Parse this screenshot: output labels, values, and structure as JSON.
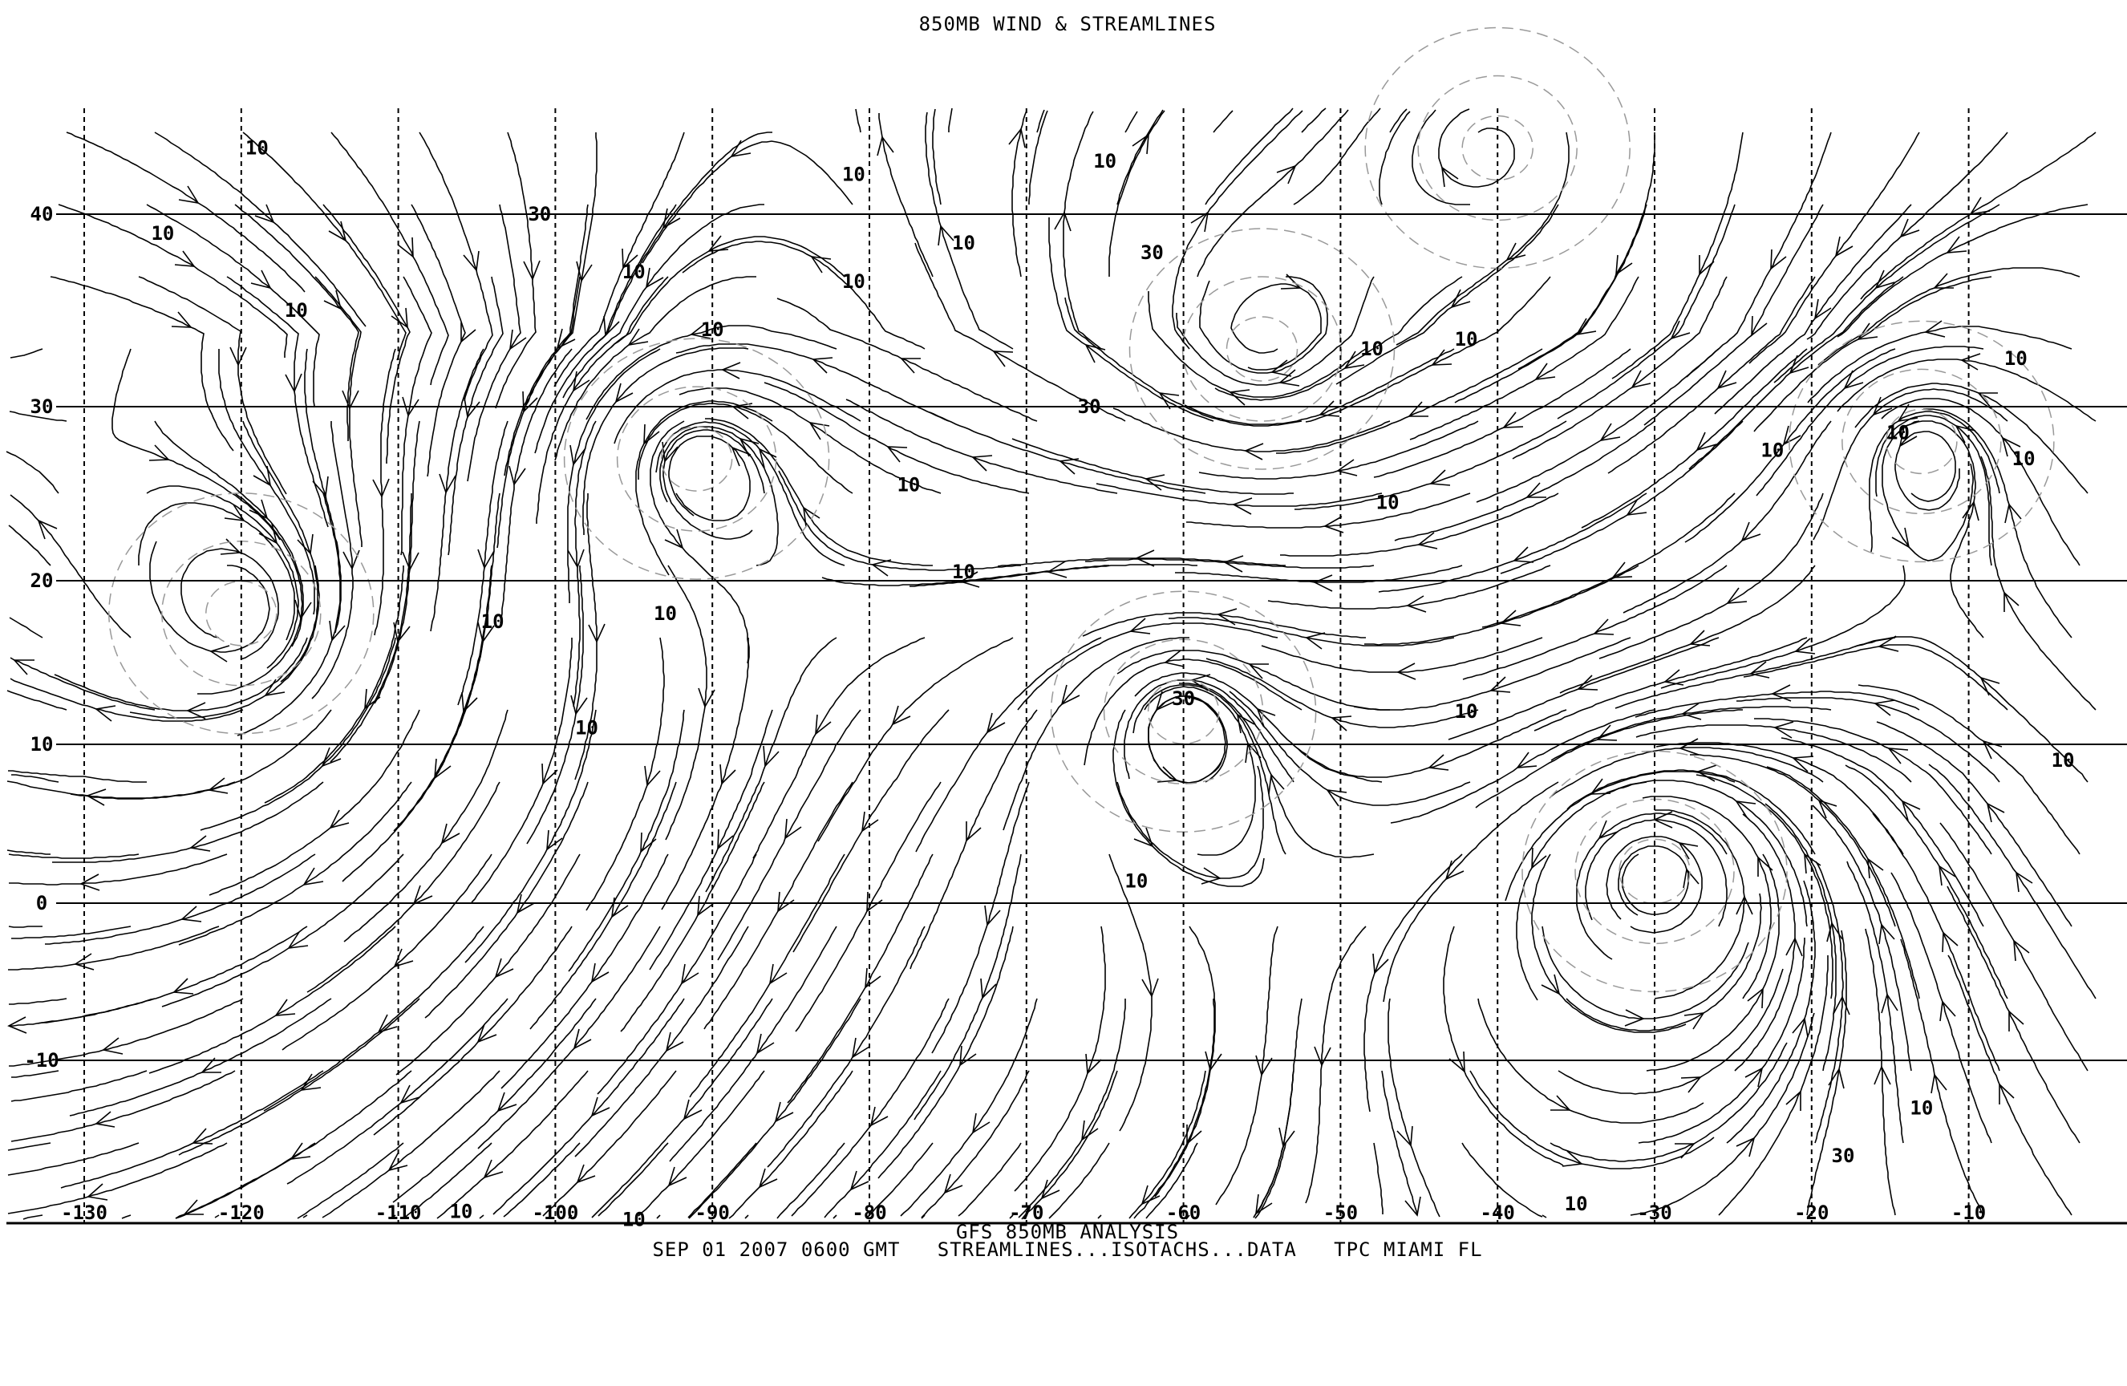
{
  "title": "850MB WIND & STREAMLINES",
  "footer": {
    "line1": "GFS 850MB ANALYSIS",
    "line2": "SEP 01 2007 0600 GMT   STREAMLINES...ISOTACHS...DATA   TPC MIAMI FL"
  },
  "map": {
    "longitudes": [
      -130,
      -120,
      -110,
      -100,
      -90,
      -80,
      -70,
      -60,
      -50,
      -40,
      -30,
      -20,
      -10
    ],
    "longitude_labels": [
      "-130",
      "-120",
      "-110",
      "-100",
      "-90",
      "-80",
      "-70",
      "-60",
      "-50",
      "-40",
      "-30",
      "-20",
      "-10"
    ],
    "latitudes": [
      40,
      30,
      20,
      10,
      0,
      -10
    ],
    "latitude_labels": [
      "40",
      "30",
      "20",
      "10",
      "0",
      "-10"
    ],
    "lon_range": [
      -135,
      -3
    ],
    "lat_range": [
      -25,
      48
    ],
    "isotach_labels": [
      {
        "text": "10",
        "lon": -119,
        "lat": 45
      },
      {
        "text": "30",
        "lon": -101,
        "lat": 40
      },
      {
        "text": "10",
        "lon": -125,
        "lat": 39
      },
      {
        "text": "10",
        "lon": -116.5,
        "lat": 35
      },
      {
        "text": "10",
        "lon": -95,
        "lat": 37
      },
      {
        "text": "10",
        "lon": -81,
        "lat": 43
      },
      {
        "text": "10",
        "lon": -81,
        "lat": 36.5
      },
      {
        "text": "10",
        "lon": -74,
        "lat": 38.5
      },
      {
        "text": "10",
        "lon": -90,
        "lat": 34
      },
      {
        "text": "10",
        "lon": -65,
        "lat": 44
      },
      {
        "text": "30",
        "lon": -62,
        "lat": 38
      },
      {
        "text": "30",
        "lon": -66,
        "lat": 30
      },
      {
        "text": "10",
        "lon": -48,
        "lat": 33
      },
      {
        "text": "10",
        "lon": -42,
        "lat": 33.5
      },
      {
        "text": "10",
        "lon": -47,
        "lat": 24.5
      },
      {
        "text": "10",
        "lon": -77.5,
        "lat": 25.5
      },
      {
        "text": "10",
        "lon": -74,
        "lat": 20.5
      },
      {
        "text": "10",
        "lon": -93,
        "lat": 18
      },
      {
        "text": "10",
        "lon": -104,
        "lat": 17.5
      },
      {
        "text": "10",
        "lon": -98,
        "lat": 11
      },
      {
        "text": "30",
        "lon": -60,
        "lat": 12.8
      },
      {
        "text": "10",
        "lon": -42,
        "lat": 12
      },
      {
        "text": "10",
        "lon": -63,
        "lat": 1.4
      },
      {
        "text": "10",
        "lon": -22.5,
        "lat": 27.5
      },
      {
        "text": "10",
        "lon": -14.5,
        "lat": 28.5
      },
      {
        "text": "10",
        "lon": -7,
        "lat": 32.5
      },
      {
        "text": "10",
        "lon": -6.5,
        "lat": 27
      },
      {
        "text": "10",
        "lon": -4,
        "lat": 9
      },
      {
        "text": "10",
        "lon": -13,
        "lat": -13
      },
      {
        "text": "30",
        "lon": -18,
        "lat": -16
      },
      {
        "text": "10",
        "lon": -35,
        "lat": -19
      },
      {
        "text": "10",
        "lon": -106,
        "lat": -19.5
      },
      {
        "text": "10",
        "lon": -95,
        "lat": -20
      }
    ],
    "circulation_centers": [
      {
        "type": "anticyclone",
        "lon": -120,
        "lat": 18
      },
      {
        "type": "cyclone",
        "lon": -91,
        "lat": 27
      },
      {
        "type": "anticyclone",
        "lon": -40,
        "lat": 45
      },
      {
        "type": "cyclone",
        "lon": -60,
        "lat": 12
      },
      {
        "type": "cyclone",
        "lon": -30,
        "lat": 2
      },
      {
        "type": "anticyclone",
        "lon": -55,
        "lat": 33
      },
      {
        "type": "cyclone",
        "lon": -13,
        "lat": 28
      }
    ],
    "line_color": "#000000",
    "isotach_color": "#999999"
  }
}
